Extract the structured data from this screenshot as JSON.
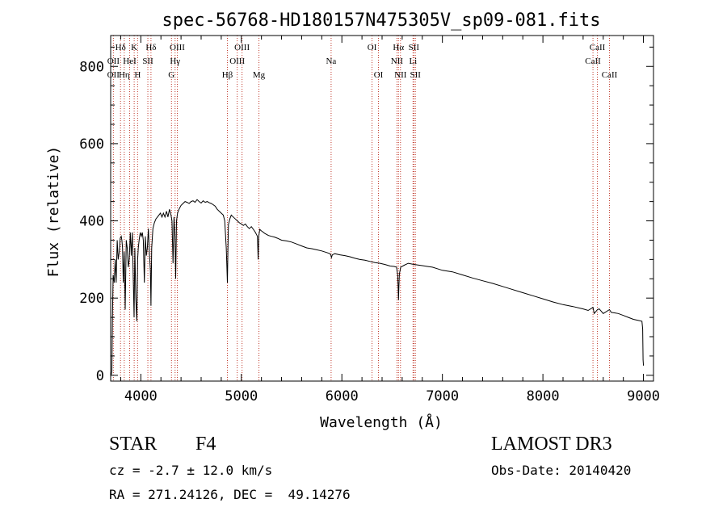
{
  "chart_data": {
    "type": "line",
    "title": "spec-56768-HD180157N475305V_sp09-081.fits",
    "xlabel": "Wavelength (Å)",
    "ylabel": "Flux (relative)",
    "xlim": [
      3700,
      9100
    ],
    "ylim": [
      -15,
      880
    ],
    "xticks": [
      4000,
      5000,
      6000,
      7000,
      8000,
      9000
    ],
    "xtick_labels": [
      "4000",
      "5000",
      "6000",
      "7000",
      "8000",
      "9000"
    ],
    "yticks": [
      0,
      200,
      400,
      600,
      800
    ],
    "ytick_labels": [
      "0",
      "200",
      "400",
      "600",
      "800"
    ],
    "grid": false,
    "series": [
      {
        "name": "spectrum",
        "x": [
          3705,
          3712,
          3718,
          3725,
          3735,
          3745,
          3755,
          3765,
          3775,
          3785,
          3795,
          3805,
          3812,
          3818,
          3825,
          3835,
          3845,
          3855,
          3865,
          3875,
          3885,
          3895,
          3905,
          3915,
          3925,
          3933,
          3940,
          3950,
          3960,
          3968,
          3975,
          3985,
          3995,
          4005,
          4015,
          4025,
          4035,
          4045,
          4055,
          4065,
          4075,
          4085,
          4095,
          4101,
          4108,
          4120,
          4135,
          4150,
          4165,
          4180,
          4195,
          4210,
          4225,
          4240,
          4255,
          4270,
          4285,
          4300,
          4310,
          4320,
          4330,
          4340,
          4347,
          4355,
          4365,
          4380,
          4400,
          4420,
          4440,
          4460,
          4480,
          4500,
          4520,
          4540,
          4560,
          4580,
          4600,
          4620,
          4640,
          4660,
          4680,
          4700,
          4720,
          4740,
          4760,
          4780,
          4800,
          4820,
          4835,
          4850,
          4856,
          4861,
          4866,
          4872,
          4885,
          4900,
          4920,
          4940,
          4960,
          4980,
          5000,
          5020,
          5040,
          5060,
          5080,
          5100,
          5120,
          5140,
          5160,
          5167,
          5173,
          5183,
          5195,
          5210,
          5230,
          5250,
          5270,
          5300,
          5330,
          5360,
          5400,
          5450,
          5500,
          5550,
          5600,
          5650,
          5700,
          5750,
          5800,
          5850,
          5880,
          5890,
          5896,
          5905,
          5930,
          5980,
          6030,
          6080,
          6130,
          6180,
          6230,
          6280,
          6330,
          6380,
          6430,
          6480,
          6520,
          6545,
          6555,
          6560,
          6563,
          6567,
          6572,
          6585,
          6620,
          6660,
          6700,
          6750,
          6800,
          6850,
          6900,
          6950,
          7000,
          7100,
          7200,
          7300,
          7400,
          7500,
          7600,
          7700,
          7800,
          7900,
          8000,
          8100,
          8200,
          8300,
          8400,
          8450,
          8498,
          8510,
          8542,
          8560,
          8600,
          8662,
          8680,
          8750,
          8800,
          8850,
          8900,
          8950,
          8985,
          8992,
          8996,
          9000
        ],
        "y": [
          0,
          10,
          150,
          260,
          240,
          300,
          240,
          350,
          300,
          320,
          355,
          360,
          350,
          330,
          240,
          320,
          170,
          350,
          330,
          280,
          300,
          370,
          310,
          370,
          250,
          150,
          330,
          200,
          140,
          300,
          330,
          355,
          370,
          360,
          370,
          350,
          240,
          360,
          310,
          330,
          380,
          320,
          270,
          180,
          330,
          380,
          395,
          405,
          410,
          415,
          420,
          410,
          420,
          410,
          425,
          410,
          430,
          415,
          400,
          290,
          410,
          360,
          250,
          400,
          420,
          430,
          440,
          445,
          450,
          448,
          445,
          450,
          452,
          448,
          455,
          450,
          446,
          452,
          448,
          450,
          447,
          445,
          442,
          438,
          430,
          425,
          420,
          415,
          400,
          330,
          280,
          240,
          320,
          390,
          405,
          415,
          410,
          405,
          400,
          395,
          392,
          388,
          392,
          385,
          380,
          385,
          378,
          370,
          360,
          300,
          360,
          378,
          375,
          372,
          368,
          365,
          362,
          360,
          358,
          355,
          350,
          348,
          345,
          340,
          335,
          330,
          328,
          325,
          322,
          318,
          315,
          312,
          305,
          312,
          315,
          312,
          310,
          307,
          303,
          300,
          298,
          295,
          292,
          290,
          287,
          283,
          282,
          280,
          260,
          230,
          195,
          230,
          262,
          280,
          285,
          290,
          288,
          286,
          284,
          282,
          280,
          276,
          272,
          268,
          260,
          252,
          245,
          238,
          230,
          222,
          214,
          206,
          198,
          190,
          183,
          178,
          172,
          168,
          176,
          160,
          170,
          172,
          160,
          170,
          163,
          160,
          155,
          150,
          145,
          142,
          140,
          120,
          40,
          25
        ]
      }
    ],
    "lines_top": [
      {
        "label": "Hδ",
        "x": 3798
      },
      {
        "label": "K",
        "x": 3934
      },
      {
        "label": "Hδ",
        "x": 4101
      },
      {
        "label": "OIII",
        "x": 4363
      },
      {
        "label": "OIII",
        "x": 5007
      },
      {
        "label": "OI",
        "x": 6300
      },
      {
        "label": "Hα",
        "x": 6563
      },
      {
        "label": "SII",
        "x": 6716
      },
      {
        "label": "CaII",
        "x": 8542
      }
    ],
    "lines_mid": [
      {
        "label": "OII",
        "x": 3727
      },
      {
        "label": "HeI",
        "x": 3889
      },
      {
        "label": "SII",
        "x": 4070
      },
      {
        "label": "Hγ",
        "x": 4341
      },
      {
        "label": "OIII",
        "x": 4959
      },
      {
        "label": "Na",
        "x": 5893
      },
      {
        "label": "NII",
        "x": 6548
      },
      {
        "label": "Li",
        "x": 6708
      },
      {
        "label": "CaII",
        "x": 8498
      }
    ],
    "lines_bot": [
      {
        "label": "OII",
        "x": 3726
      },
      {
        "label": "Hη",
        "x": 3835
      },
      {
        "label": "H",
        "x": 3968
      },
      {
        "label": "G",
        "x": 4305
      },
      {
        "label": "Hβ",
        "x": 4861
      },
      {
        "label": "Mg",
        "x": 5175
      },
      {
        "label": "OI",
        "x": 6364
      },
      {
        "label": "NII",
        "x": 6583
      },
      {
        "label": "SII",
        "x": 6731
      },
      {
        "label": "CaII",
        "x": 8662
      }
    ],
    "marker_lines": [
      3727,
      3798,
      3835,
      3889,
      3934,
      3968,
      4070,
      4101,
      4305,
      4341,
      4363,
      4861,
      4959,
      5007,
      5175,
      5893,
      6300,
      6364,
      6548,
      6563,
      6583,
      6708,
      6716,
      6731,
      8498,
      8542,
      8662
    ]
  },
  "info": {
    "class": "STAR",
    "subclass": "F4",
    "survey": "LAMOST DR3",
    "cz": "cz = -2.7 ± 12.0 km/s",
    "obs_date": "Obs-Date: 20140420",
    "radec": "RA = 271.24126, DEC =  49.14276"
  },
  "colors": {
    "marker": "#c0392b",
    "spectrum": "#000000",
    "axes": "#000000"
  }
}
